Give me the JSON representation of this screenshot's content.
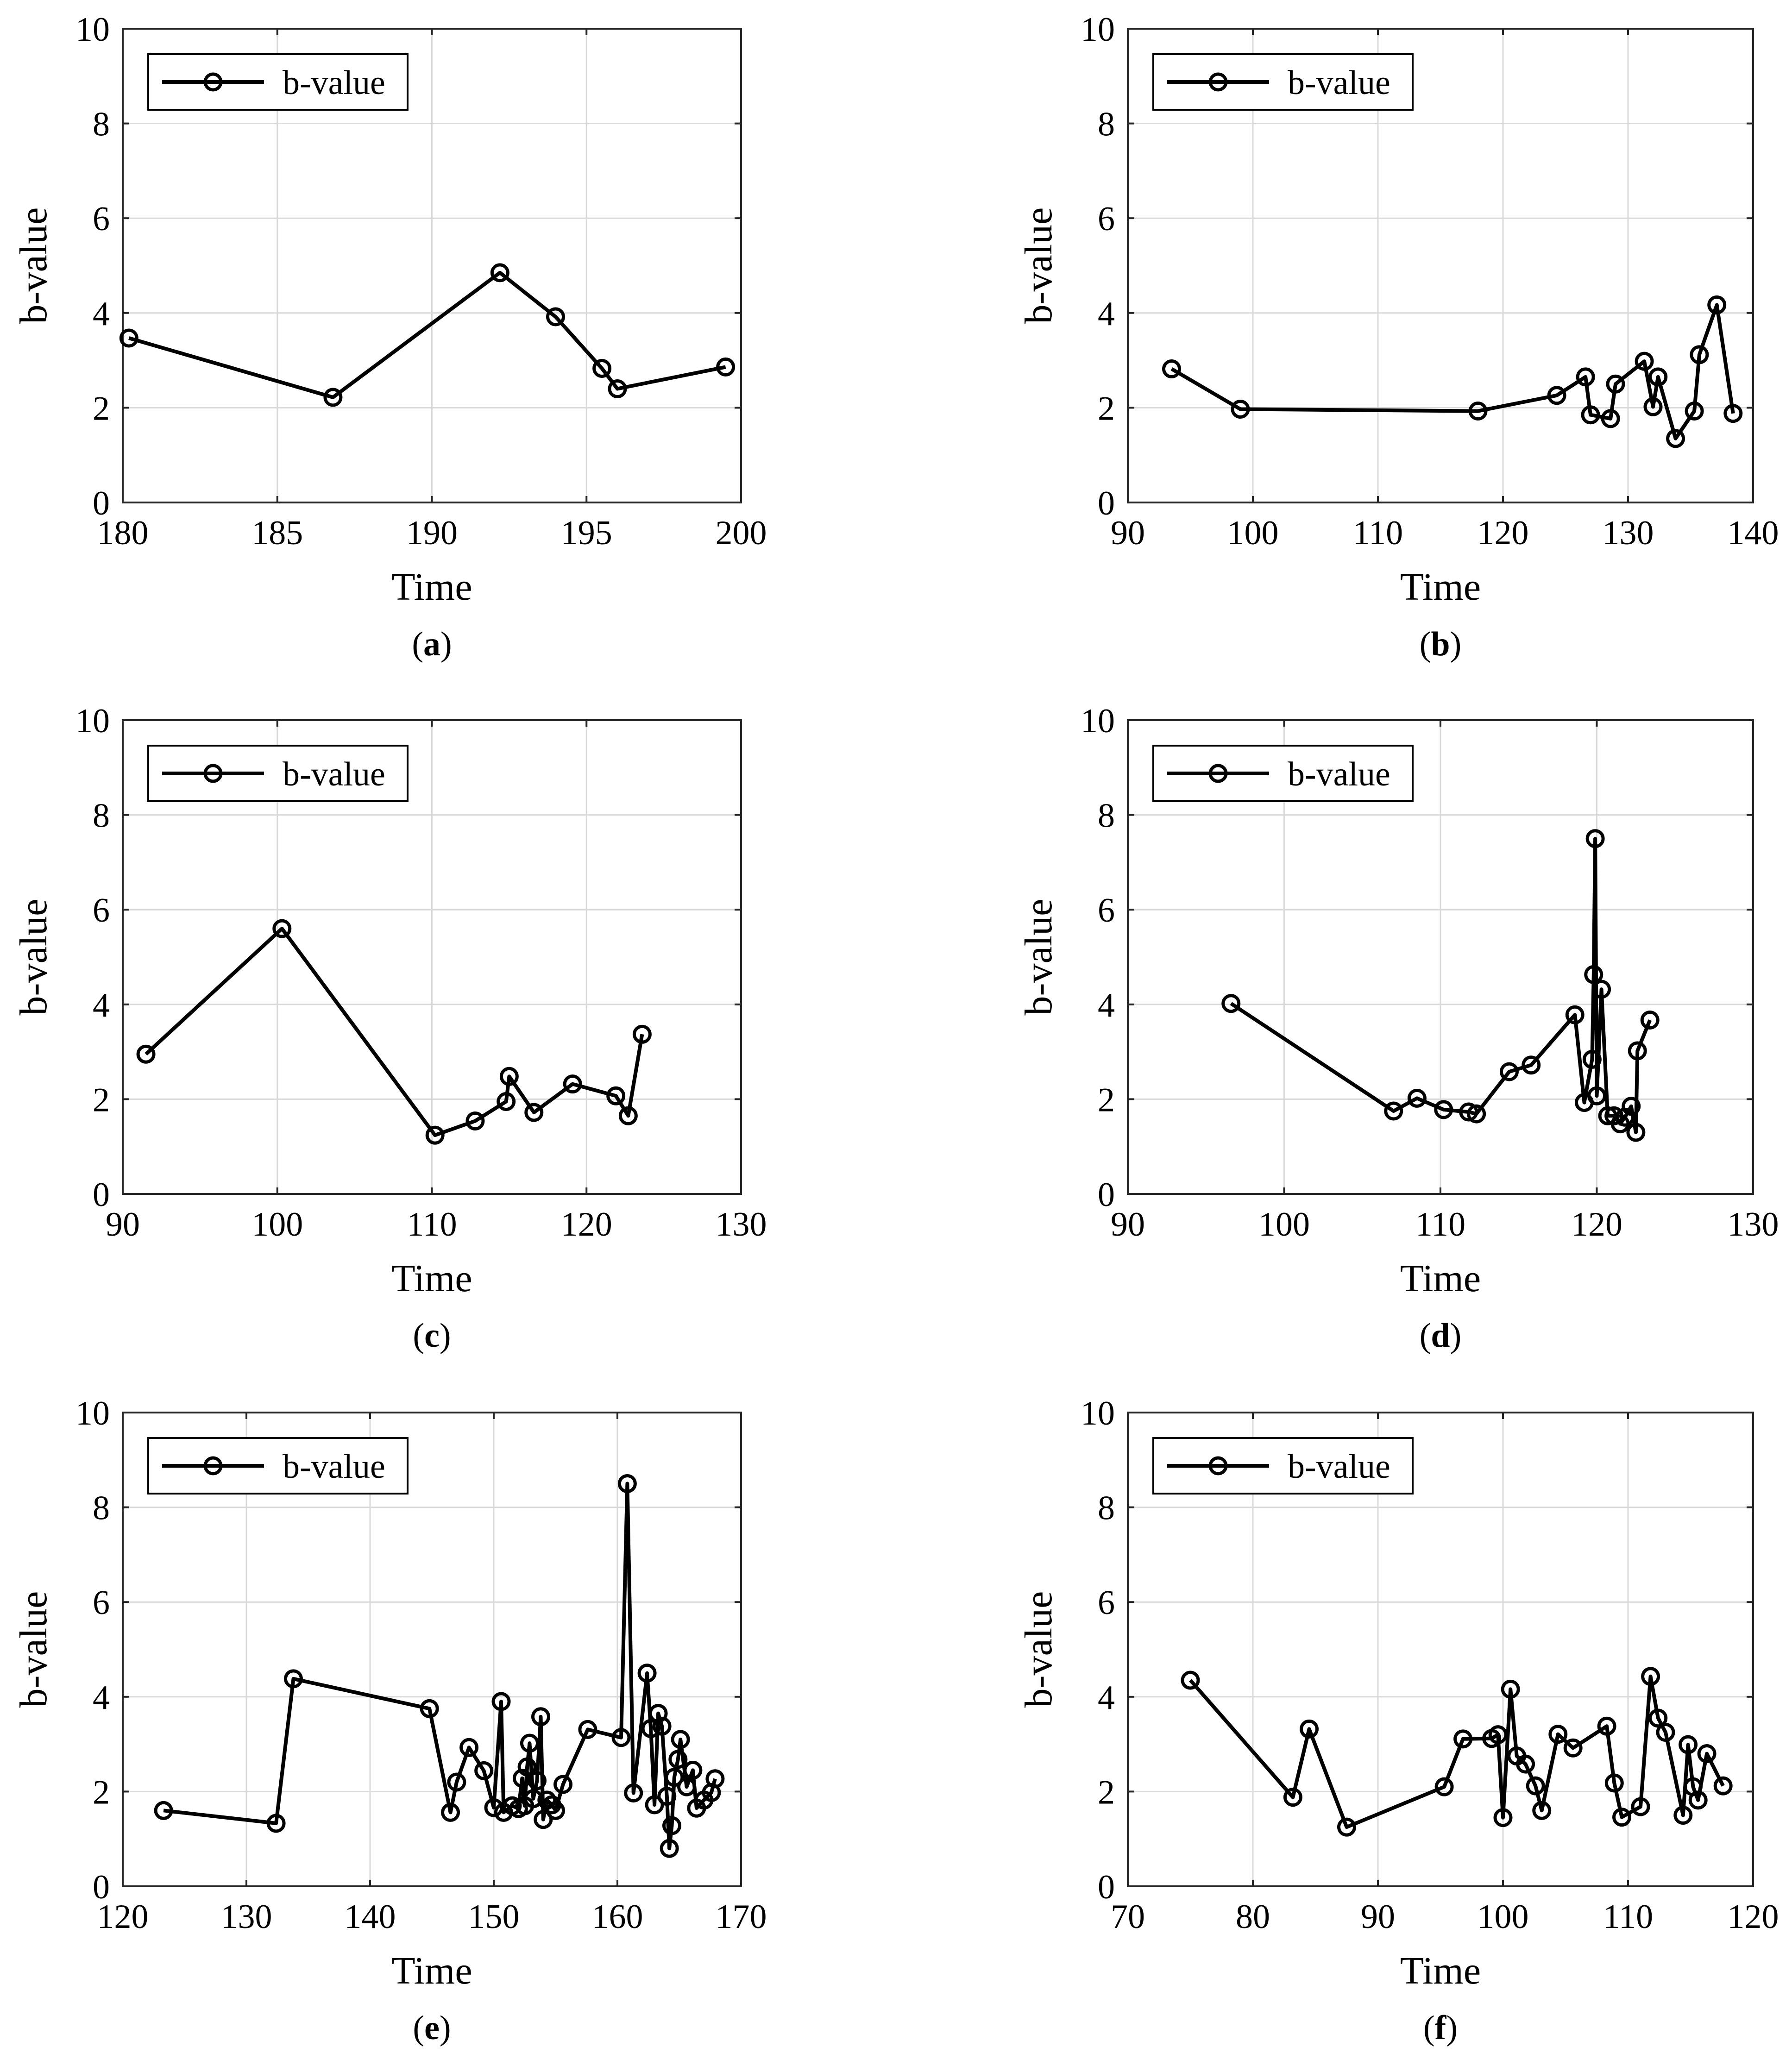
{
  "chart_data": [
    {
      "type": "line",
      "panel_label": "(a)",
      "panel_letter": "a",
      "xlabel": "Time",
      "ylabel": "b-value",
      "xlim": [
        180,
        200
      ],
      "xticks": [
        180,
        185,
        190,
        195,
        200
      ],
      "ylim": [
        0,
        10
      ],
      "yticks": [
        0,
        2,
        4,
        6,
        8,
        10
      ],
      "grid": true,
      "legend": "top-left",
      "series": [
        {
          "name": "b-value",
          "x": [
            180.2,
            186.8,
            192.2,
            194.0,
            195.5,
            196.0,
            199.5
          ],
          "y": [
            3.47,
            2.22,
            4.85,
            3.92,
            2.83,
            2.4,
            2.86
          ]
        }
      ]
    },
    {
      "type": "line",
      "panel_label": "(b)",
      "panel_letter": "b",
      "xlabel": "Time",
      "ylabel": "b-value",
      "xlim": [
        90,
        140
      ],
      "xticks": [
        90,
        100,
        110,
        120,
        130,
        140
      ],
      "ylim": [
        0,
        10
      ],
      "yticks": [
        0,
        2,
        4,
        6,
        8,
        10
      ],
      "grid": true,
      "legend": "top-left",
      "series": [
        {
          "name": "b-value",
          "x": [
            93.5,
            99.0,
            118.0,
            124.3,
            126.6,
            127.0,
            128.6,
            129.0,
            131.3,
            132.0,
            132.4,
            133.8,
            135.3,
            135.7,
            137.1,
            138.4
          ],
          "y": [
            2.82,
            1.97,
            1.93,
            2.26,
            2.65,
            1.85,
            1.77,
            2.5,
            2.98,
            2.02,
            2.65,
            1.35,
            1.93,
            3.12,
            4.17,
            1.88
          ]
        }
      ]
    },
    {
      "type": "line",
      "panel_label": "(c)",
      "panel_letter": "c",
      "xlabel": "Time",
      "ylabel": "b-value",
      "xlim": [
        90,
        130
      ],
      "xticks": [
        90,
        100,
        110,
        120,
        130
      ],
      "ylim": [
        0,
        10
      ],
      "yticks": [
        0,
        2,
        4,
        6,
        8,
        10
      ],
      "grid": true,
      "legend": "top-left",
      "series": [
        {
          "name": "b-value",
          "x": [
            91.5,
            100.3,
            110.2,
            112.8,
            114.8,
            115.0,
            116.6,
            119.1,
            121.9,
            122.7,
            123.6
          ],
          "y": [
            2.95,
            5.6,
            1.24,
            1.54,
            1.95,
            2.48,
            1.72,
            2.32,
            2.07,
            1.65,
            3.37
          ]
        }
      ]
    },
    {
      "type": "line",
      "panel_label": "(d)",
      "panel_letter": "d",
      "xlabel": "Time",
      "ylabel": "b-value",
      "xlim": [
        90,
        130
      ],
      "xticks": [
        90,
        100,
        110,
        120,
        130
      ],
      "ylim": [
        0,
        10
      ],
      "yticks": [
        0,
        2,
        4,
        6,
        8,
        10
      ],
      "grid": true,
      "legend": "top-left",
      "series": [
        {
          "name": "b-value",
          "x": [
            96.6,
            107.0,
            108.5,
            110.2,
            111.8,
            112.3,
            114.4,
            115.8,
            118.6,
            119.2,
            119.7,
            119.8,
            119.9,
            120.0,
            120.3,
            120.7,
            121.1,
            121.5,
            121.8,
            122.2,
            122.5,
            122.6,
            123.4
          ],
          "y": [
            4.02,
            1.75,
            2.02,
            1.78,
            1.73,
            1.69,
            2.58,
            2.72,
            3.78,
            1.93,
            2.84,
            4.63,
            7.5,
            2.07,
            4.32,
            1.65,
            1.65,
            1.48,
            1.62,
            1.85,
            1.3,
            3.02,
            3.67
          ]
        }
      ]
    },
    {
      "type": "line",
      "panel_label": "(e)",
      "panel_letter": "e",
      "xlabel": "Time",
      "ylabel": "b-value",
      "xlim": [
        120,
        170
      ],
      "xticks": [
        120,
        130,
        140,
        150,
        160,
        170
      ],
      "ylim": [
        0,
        10
      ],
      "yticks": [
        0,
        2,
        4,
        6,
        8,
        10
      ],
      "grid": true,
      "legend": "top-left",
      "series": [
        {
          "name": "b-value",
          "x": [
            123.3,
            132.4,
            133.8,
            144.8,
            146.5,
            147.0,
            148.0,
            149.2,
            150.0,
            150.6,
            150.8,
            151.5,
            152.0,
            152.3,
            152.5,
            152.7,
            152.9,
            153.2,
            153.5,
            153.8,
            154.0,
            154.3,
            154.7,
            155.0,
            155.6,
            157.6,
            160.3,
            160.8,
            161.3,
            162.4,
            162.7,
            163.0,
            163.3,
            163.6,
            164.0,
            164.2,
            164.4,
            164.6,
            164.9,
            165.1,
            165.6,
            166.1,
            166.4,
            167.0,
            167.6,
            167.9
          ],
          "y": [
            1.6,
            1.33,
            4.38,
            3.75,
            1.56,
            2.2,
            2.93,
            2.44,
            1.66,
            3.9,
            1.56,
            1.7,
            1.64,
            2.28,
            1.7,
            2.52,
            3.02,
            1.85,
            2.23,
            3.58,
            1.41,
            1.82,
            1.72,
            1.6,
            2.15,
            3.31,
            3.14,
            8.5,
            1.97,
            4.5,
            3.33,
            1.72,
            3.65,
            3.38,
            1.9,
            0.8,
            1.28,
            2.3,
            2.68,
            3.1,
            2.1,
            2.45,
            1.65,
            1.82,
            1.98,
            2.27
          ]
        }
      ]
    },
    {
      "type": "line",
      "panel_label": "(f)",
      "panel_letter": "f",
      "xlabel": "Time",
      "ylabel": "b-value",
      "xlim": [
        70,
        120
      ],
      "xticks": [
        70,
        80,
        90,
        100,
        110,
        120
      ],
      "ylim": [
        0,
        10
      ],
      "yticks": [
        0,
        2,
        4,
        6,
        8,
        10
      ],
      "grid": true,
      "legend": "top-left",
      "series": [
        {
          "name": "b-value",
          "x": [
            75.0,
            83.2,
            84.5,
            87.5,
            95.3,
            96.8,
            99.1,
            99.6,
            100.0,
            100.6,
            101.1,
            101.8,
            102.6,
            103.1,
            104.4,
            105.6,
            108.3,
            108.9,
            109.5,
            111.0,
            111.8,
            112.4,
            113.0,
            114.4,
            114.8,
            115.2,
            115.6,
            116.3,
            117.6
          ],
          "y": [
            4.35,
            1.88,
            3.32,
            1.25,
            2.1,
            3.11,
            3.12,
            3.2,
            1.45,
            4.16,
            2.75,
            2.58,
            2.12,
            1.6,
            3.21,
            2.92,
            3.38,
            2.18,
            1.46,
            1.68,
            4.43,
            3.55,
            3.25,
            1.5,
            2.99,
            2.1,
            1.82,
            2.8,
            2.12
          ]
        }
      ]
    }
  ]
}
